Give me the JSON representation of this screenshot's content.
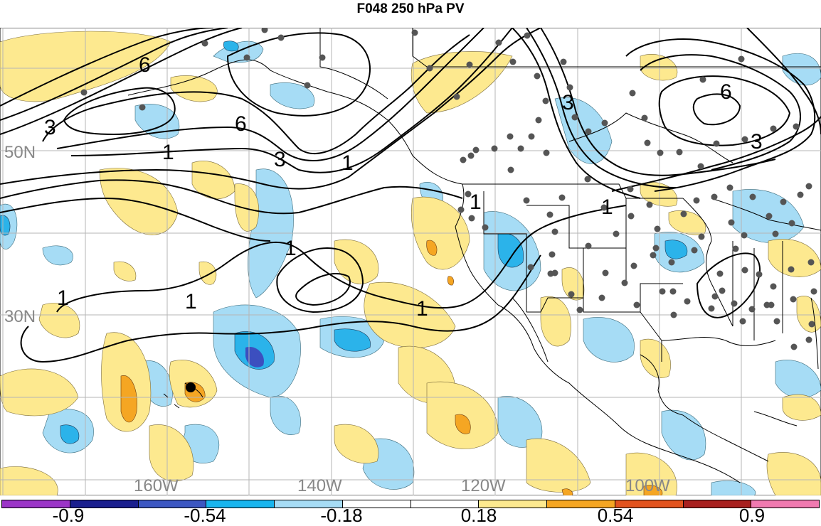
{
  "title": "F048 250 hPa PV",
  "map": {
    "lat_labels": [
      "50N",
      "30N"
    ],
    "lon_labels": [
      "160W",
      "140W",
      "120W",
      "100W"
    ],
    "contour_labels": [
      "6",
      "3",
      "6",
      "1",
      "3",
      "1",
      "1",
      "1",
      "1",
      "1",
      "1",
      "3",
      "6",
      "3",
      "1"
    ],
    "colors": {
      "positive_light": "#fde98f",
      "positive_mid": "#f5a623",
      "positive_strong": "#e2531e",
      "negative_light": "#a6dcf5",
      "negative_mid": "#2bb3ea",
      "negative_strong": "#3c4fbf",
      "station_dot": "#555555"
    }
  },
  "colorbar": {
    "colors": [
      "#9b35c7",
      "#1a1f8e",
      "#3c57c2",
      "#18b5ee",
      "#a6dcf5",
      "#ffffff",
      "#ffffff",
      "#fde98f",
      "#f5a623",
      "#e2531e",
      "#a8201f",
      "#f07ab0"
    ],
    "labels": [
      "-0.9",
      "-0.54",
      "-0.18",
      "0.18",
      "0.54",
      "0.9"
    ]
  }
}
